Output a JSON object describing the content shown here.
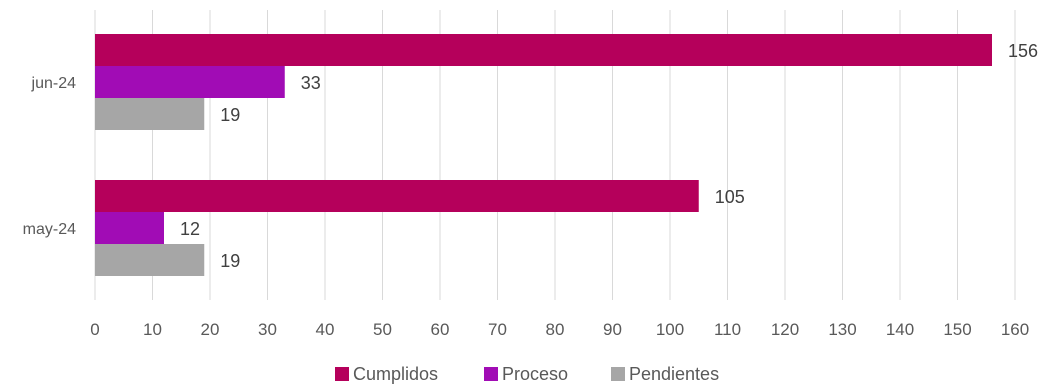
{
  "chart_data": {
    "type": "bar",
    "orientation": "horizontal",
    "categories": [
      "jun-24",
      "may-24"
    ],
    "series": [
      {
        "name": "Cumplidos",
        "color": "#b5005b",
        "values": [
          156,
          105
        ]
      },
      {
        "name": "Proceso",
        "color": "#a10cb5",
        "values": [
          33,
          12
        ]
      },
      {
        "name": "Pendientes",
        "color": "#a6a6a6",
        "values": [
          19,
          19
        ]
      }
    ],
    "xlim": [
      0,
      160
    ],
    "xticks": [
      0,
      10,
      20,
      30,
      40,
      50,
      60,
      70,
      80,
      90,
      100,
      110,
      120,
      130,
      140,
      150,
      160
    ],
    "grid": true,
    "legend": "bottom",
    "data_labels": true
  }
}
